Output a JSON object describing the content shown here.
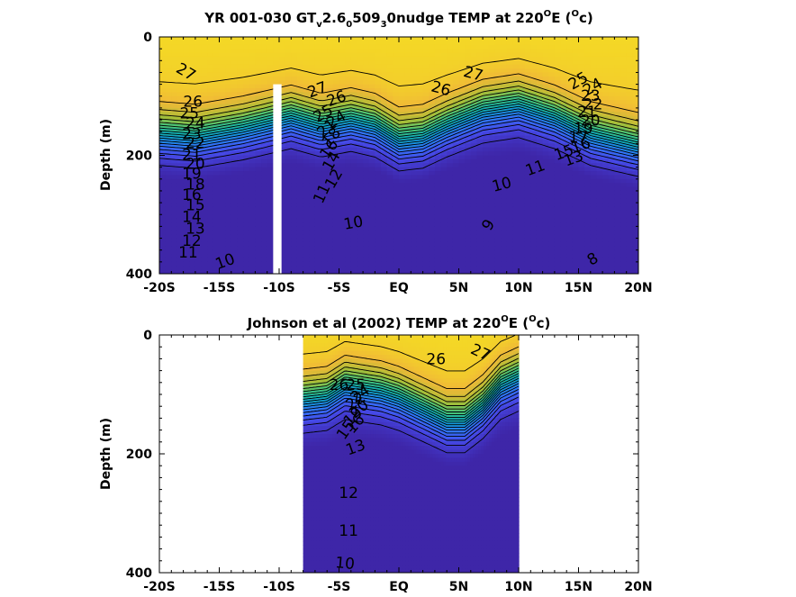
{
  "chart_data": [
    {
      "type": "contour",
      "title": {
        "prefix": "YR 001-030 GT",
        "sub1": "v",
        "mid1": "2.6",
        "sub2": "0",
        "mid2": "509",
        "sub3": "3",
        "mid3": "0nudge TEMP at 220",
        "sup1": "O",
        "mid4": "E (",
        "sup2": "O",
        "suffix": "c)"
      },
      "ylabel": "Depth (m)",
      "xlim": [
        -20,
        20
      ],
      "ylim": [
        0,
        400
      ],
      "y_reversed": true,
      "x_ticks": [
        {
          "value": -20,
          "label": "-20S"
        },
        {
          "value": -15,
          "label": "-15S"
        },
        {
          "value": -10,
          "label": "-10S"
        },
        {
          "value": -5,
          "label": "-5S"
        },
        {
          "value": 0,
          "label": "EQ"
        },
        {
          "value": 5,
          "label": "5N"
        },
        {
          "value": 10,
          "label": "10N"
        },
        {
          "value": 15,
          "label": "15N"
        },
        {
          "value": 20,
          "label": "20N"
        }
      ],
      "y_ticks": [
        {
          "value": 0,
          "label": "0"
        },
        {
          "value": 200,
          "label": "200"
        },
        {
          "value": 400,
          "label": "400"
        }
      ],
      "data_extent": [
        -20,
        20
      ],
      "gap": {
        "x": [
          -10.5,
          -9.8
        ],
        "depth": [
          80,
          400
        ]
      },
      "colormap_range": [
        8,
        29
      ],
      "thermocline_depth": [
        {
          "x": -20,
          "d": 165
        },
        {
          "x": -17,
          "d": 170
        },
        {
          "x": -13,
          "d": 155
        },
        {
          "x": -9,
          "d": 135
        },
        {
          "x": -6.5,
          "d": 150
        },
        {
          "x": -4,
          "d": 140
        },
        {
          "x": -2,
          "d": 150
        },
        {
          "x": 0,
          "d": 175
        },
        {
          "x": 2,
          "d": 170
        },
        {
          "x": 4,
          "d": 150
        },
        {
          "x": 7,
          "d": 125
        },
        {
          "x": 10,
          "d": 115
        },
        {
          "x": 13,
          "d": 135
        },
        {
          "x": 16,
          "d": 165
        },
        {
          "x": 20,
          "d": 185
        }
      ],
      "contour_labels": [
        {
          "text": "27",
          "x": -17.8,
          "d": 60,
          "rot": 30
        },
        {
          "text": "26",
          "x": -17.2,
          "d": 110,
          "rot": 0
        },
        {
          "text": "25",
          "x": -17.5,
          "d": 130,
          "rot": 0
        },
        {
          "text": "24",
          "x": -17.0,
          "d": 147,
          "rot": 0
        },
        {
          "text": "23",
          "x": -17.3,
          "d": 165,
          "rot": 0
        },
        {
          "text": "22",
          "x": -17.0,
          "d": 180,
          "rot": 0
        },
        {
          "text": "21",
          "x": -17.3,
          "d": 200,
          "rot": 0
        },
        {
          "text": "20",
          "x": -17.0,
          "d": 215,
          "rot": 0
        },
        {
          "text": "19",
          "x": -17.3,
          "d": 232,
          "rot": 0
        },
        {
          "text": "18",
          "x": -17.0,
          "d": 250,
          "rot": 0
        },
        {
          "text": "16",
          "x": -17.3,
          "d": 268,
          "rot": 0
        },
        {
          "text": "15",
          "x": -17.0,
          "d": 285,
          "rot": 0
        },
        {
          "text": "14",
          "x": -17.3,
          "d": 305,
          "rot": 0
        },
        {
          "text": "13",
          "x": -17.0,
          "d": 325,
          "rot": 0
        },
        {
          "text": "12",
          "x": -17.3,
          "d": 345,
          "rot": 0
        },
        {
          "text": "11",
          "x": -17.6,
          "d": 365,
          "rot": 0
        },
        {
          "text": "10",
          "x": -14.5,
          "d": 380,
          "rot": -20
        },
        {
          "text": "27",
          "x": -6.8,
          "d": 90,
          "rot": -20
        },
        {
          "text": "26",
          "x": -5.2,
          "d": 105,
          "rot": -20
        },
        {
          "text": "25",
          "x": -6.3,
          "d": 130,
          "rot": -30
        },
        {
          "text": "24",
          "x": -5.2,
          "d": 140,
          "rot": -30
        },
        {
          "text": "21",
          "x": -6.0,
          "d": 155,
          "rot": -40
        },
        {
          "text": "18",
          "x": -5.6,
          "d": 170,
          "rot": -50
        },
        {
          "text": "16",
          "x": -5.8,
          "d": 190,
          "rot": -55
        },
        {
          "text": "14",
          "x": -5.6,
          "d": 210,
          "rot": -60
        },
        {
          "text": "12",
          "x": -5.4,
          "d": 240,
          "rot": -60
        },
        {
          "text": "11",
          "x": -6.4,
          "d": 265,
          "rot": -65
        },
        {
          "text": "10",
          "x": -3.8,
          "d": 315,
          "rot": -10
        },
        {
          "text": "26",
          "x": 3.5,
          "d": 88,
          "rot": 15
        },
        {
          "text": "27",
          "x": 6.2,
          "d": 63,
          "rot": 15
        },
        {
          "text": "9",
          "x": 7.5,
          "d": 318,
          "rot": -60
        },
        {
          "text": "8",
          "x": 16.2,
          "d": 376,
          "rot": -30
        },
        {
          "text": "25",
          "x": 15.0,
          "d": 75,
          "rot": -30
        },
        {
          "text": "24",
          "x": 16.2,
          "d": 85,
          "rot": -30
        },
        {
          "text": "23",
          "x": 16.0,
          "d": 100,
          "rot": 0
        },
        {
          "text": "22",
          "x": 16.2,
          "d": 115,
          "rot": 0
        },
        {
          "text": "21",
          "x": 15.7,
          "d": 128,
          "rot": 0
        },
        {
          "text": "20",
          "x": 16.0,
          "d": 142,
          "rot": 0
        },
        {
          "text": "19",
          "x": 15.4,
          "d": 156,
          "rot": 0
        },
        {
          "text": "17",
          "x": 15.0,
          "d": 170,
          "rot": 0
        },
        {
          "text": "16",
          "x": 15.2,
          "d": 184,
          "rot": -20
        },
        {
          "text": "15",
          "x": 13.8,
          "d": 196,
          "rot": -20
        },
        {
          "text": "13",
          "x": 14.6,
          "d": 206,
          "rot": -20
        },
        {
          "text": "11",
          "x": 11.4,
          "d": 222,
          "rot": -20
        },
        {
          "text": "10",
          "x": 8.6,
          "d": 250,
          "rot": -15
        }
      ]
    },
    {
      "type": "contour",
      "title": {
        "prefix": "Johnson et al (2002) TEMP at 220",
        "sup1": "O",
        "mid": "E (",
        "sup2": "O",
        "suffix": "c)"
      },
      "ylabel": "Depth (m)",
      "xlim": [
        -20,
        20
      ],
      "ylim": [
        0,
        400
      ],
      "y_reversed": true,
      "x_ticks": [
        {
          "value": -20,
          "label": "-20S"
        },
        {
          "value": -15,
          "label": "-15S"
        },
        {
          "value": -10,
          "label": "-10S"
        },
        {
          "value": -5,
          "label": "-5S"
        },
        {
          "value": 0,
          "label": "EQ"
        },
        {
          "value": 5,
          "label": "5N"
        },
        {
          "value": 10,
          "label": "10N"
        },
        {
          "value": 15,
          "label": "15N"
        },
        {
          "value": 20,
          "label": "20N"
        }
      ],
      "y_ticks": [
        {
          "value": 0,
          "label": "0"
        },
        {
          "value": 200,
          "label": "200"
        },
        {
          "value": 400,
          "label": "400"
        }
      ],
      "data_extent": [
        -8,
        10
      ],
      "gap": null,
      "colormap_range": [
        8,
        29
      ],
      "thermocline_depth": [
        {
          "x": -8,
          "d": 110
        },
        {
          "x": -6,
          "d": 105
        },
        {
          "x": -4.5,
          "d": 85
        },
        {
          "x": -3,
          "d": 90
        },
        {
          "x": -1.5,
          "d": 95
        },
        {
          "x": 0,
          "d": 105
        },
        {
          "x": 2,
          "d": 125
        },
        {
          "x": 4,
          "d": 145
        },
        {
          "x": 5.5,
          "d": 145
        },
        {
          "x": 7,
          "d": 120
        },
        {
          "x": 8.5,
          "d": 85
        },
        {
          "x": 10,
          "d": 70
        }
      ],
      "contour_labels": [
        {
          "text": "26",
          "x": -5.0,
          "d": 85,
          "rot": 0
        },
        {
          "text": "25",
          "x": -3.6,
          "d": 85,
          "rot": 0
        },
        {
          "text": "24",
          "x": -3.2,
          "d": 100,
          "rot": -35
        },
        {
          "text": "22",
          "x": -3.6,
          "d": 112,
          "rot": -35
        },
        {
          "text": "20",
          "x": -3.3,
          "d": 125,
          "rot": -40
        },
        {
          "text": "19",
          "x": -3.8,
          "d": 138,
          "rot": -45
        },
        {
          "text": "16",
          "x": -3.6,
          "d": 150,
          "rot": -50
        },
        {
          "text": "15",
          "x": -4.4,
          "d": 160,
          "rot": -55
        },
        {
          "text": "13",
          "x": -3.6,
          "d": 190,
          "rot": -20
        },
        {
          "text": "26",
          "x": 3.1,
          "d": 42,
          "rot": 0
        },
        {
          "text": "27",
          "x": 6.8,
          "d": 30,
          "rot": 25
        },
        {
          "text": "12",
          "x": -4.2,
          "d": 267,
          "rot": 0
        },
        {
          "text": "11",
          "x": -4.2,
          "d": 330,
          "rot": 0
        },
        {
          "text": "10",
          "x": -4.5,
          "d": 385,
          "rot": 5
        }
      ]
    }
  ]
}
